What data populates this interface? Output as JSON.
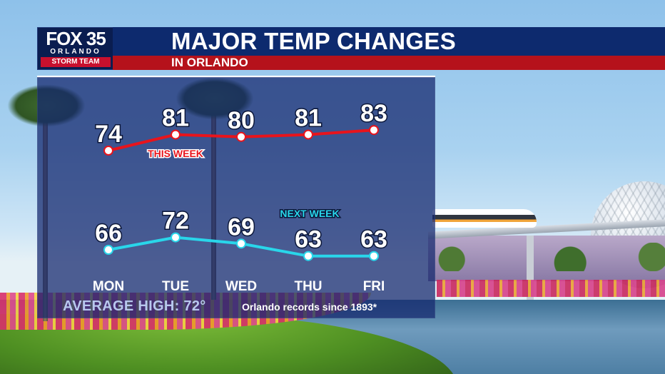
{
  "branding": {
    "station": "FOX 35",
    "city": "ORLANDO",
    "team": "STORM TEAM"
  },
  "header": {
    "title": "MAJOR TEMP CHANGES",
    "subtitle": "IN ORLANDO"
  },
  "footer": {
    "average_high": "AVERAGE HIGH: 72°",
    "records_note": "Orlando records since 1893*"
  },
  "colors": {
    "this_week": "#e8141c",
    "next_week": "#29d6ea",
    "title_bar": "#0d2a6e",
    "subtitle_bar": "#b5121b"
  },
  "chart_data": {
    "type": "line",
    "categories": [
      "MON",
      "TUE",
      "WED",
      "THU",
      "FRI"
    ],
    "series": [
      {
        "name": "THIS WEEK",
        "values": [
          74,
          81,
          80,
          81,
          83
        ]
      },
      {
        "name": "NEXT WEEK",
        "values": [
          66,
          72,
          69,
          63,
          63
        ]
      }
    ],
    "title": "MAJOR TEMP CHANGES",
    "xlabel": "",
    "ylabel": "",
    "grid": false,
    "legend": "inline labels"
  }
}
